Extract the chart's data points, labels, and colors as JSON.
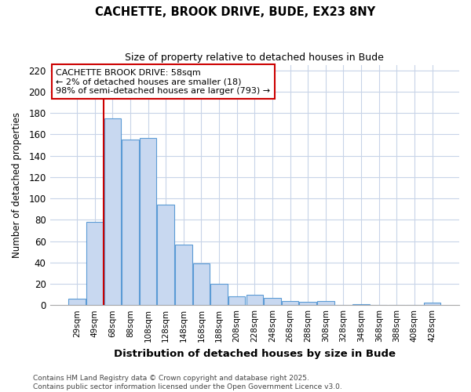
{
  "title_line1": "CACHETTE, BROOK DRIVE, BUDE, EX23 8NY",
  "title_line2": "Size of property relative to detached houses in Bude",
  "xlabel": "Distribution of detached houses by size in Bude",
  "ylabel": "Number of detached properties",
  "categories": [
    "29sqm",
    "49sqm",
    "68sqm",
    "88sqm",
    "108sqm",
    "128sqm",
    "148sqm",
    "168sqm",
    "188sqm",
    "208sqm",
    "228sqm",
    "248sqm",
    "268sqm",
    "288sqm",
    "308sqm",
    "328sqm",
    "348sqm",
    "368sqm",
    "388sqm",
    "408sqm",
    "428sqm"
  ],
  "values": [
    6,
    78,
    175,
    155,
    157,
    94,
    57,
    39,
    20,
    8,
    10,
    7,
    4,
    3,
    4,
    0,
    1,
    0,
    0,
    0,
    2
  ],
  "bar_color": "#c8d8f0",
  "bar_edge_color": "#5b9bd5",
  "property_line_x": 1.5,
  "annotation_title": "CACHETTE BROOK DRIVE: 58sqm",
  "annotation_line2": "← 2% of detached houses are smaller (18)",
  "annotation_line3": "98% of semi-detached houses are larger (793) →",
  "annotation_box_color": "#ffffff",
  "annotation_box_edge_color": "#cc0000",
  "property_line_color": "#cc0000",
  "ylim": [
    0,
    225
  ],
  "yticks": [
    0,
    20,
    40,
    60,
    80,
    100,
    120,
    140,
    160,
    180,
    200,
    220
  ],
  "footer_line1": "Contains HM Land Registry data © Crown copyright and database right 2025.",
  "footer_line2": "Contains public sector information licensed under the Open Government Licence v3.0.",
  "bg_color": "#ffffff",
  "plot_bg_color": "#ffffff",
  "grid_color": "#c8d4e8"
}
